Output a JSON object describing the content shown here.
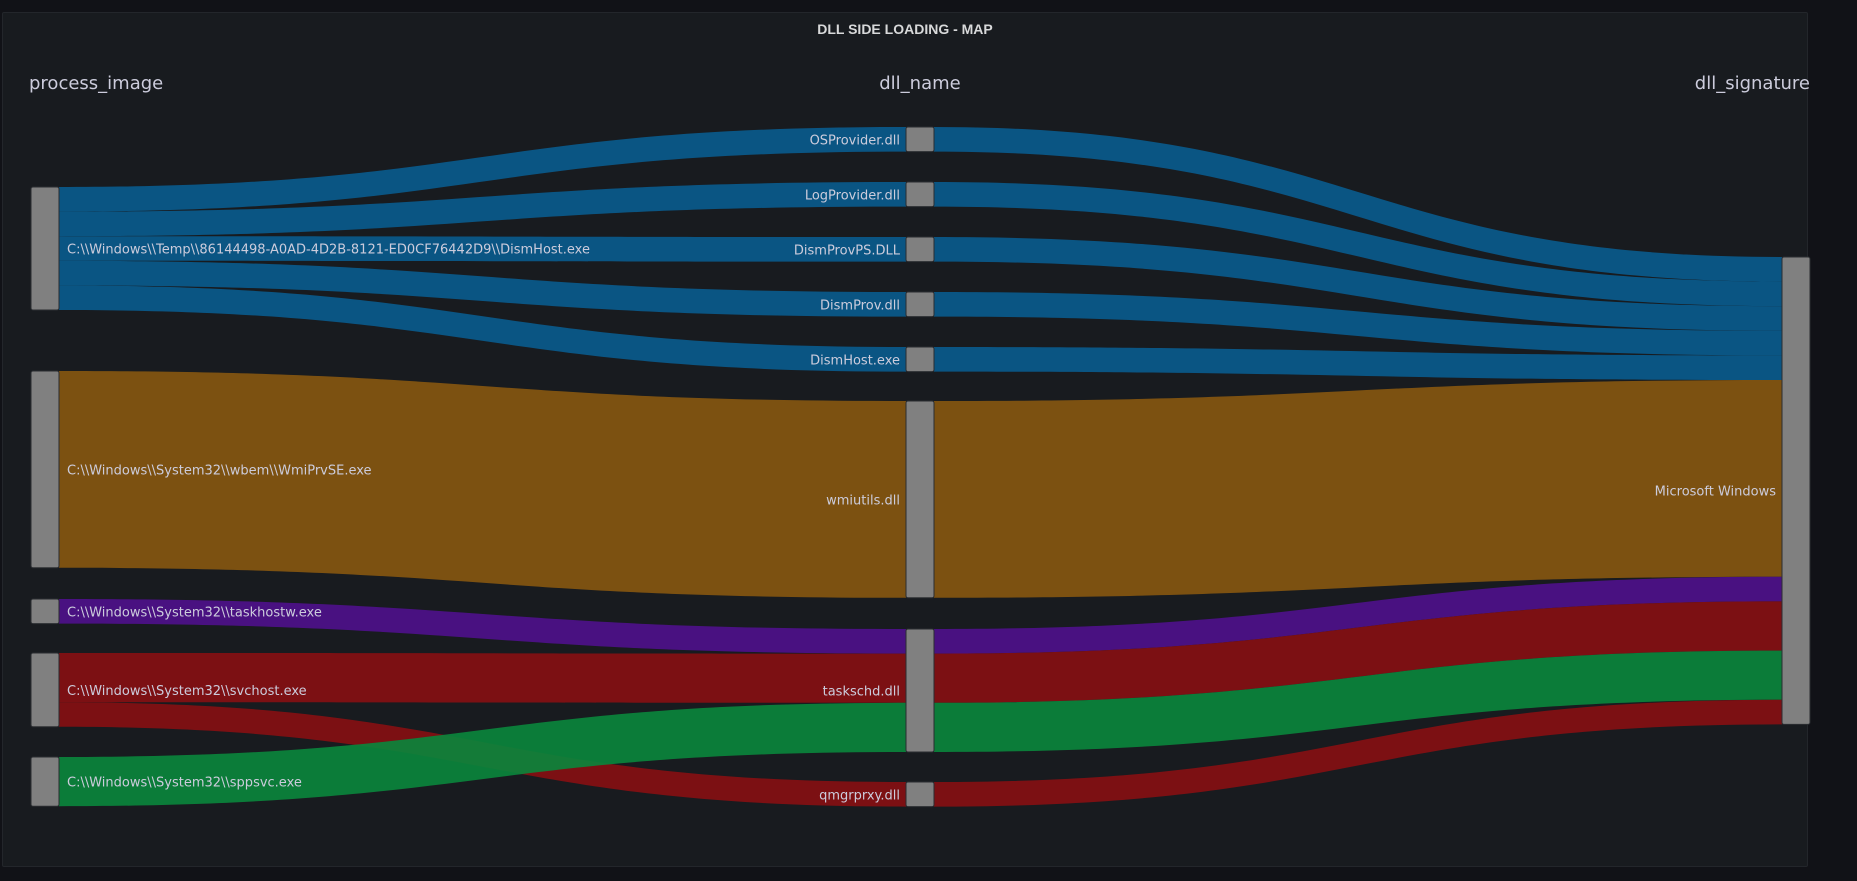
{
  "panel": {
    "title": "DLL SIDE LOADING - MAP"
  },
  "chart_data": {
    "type": "sankey",
    "columns": [
      "process_image",
      "dll_name",
      "dll_signature"
    ],
    "nodes": {
      "process_image": [
        "C:\\\\Windows\\\\Temp\\\\86144498-A0AD-4D2B-8121-ED0CF76442D9\\\\DismHost.exe",
        "C:\\\\Windows\\\\System32\\\\wbem\\\\WmiPrvSE.exe",
        "C:\\\\Windows\\\\System32\\\\taskhostw.exe",
        "C:\\\\Windows\\\\System32\\\\svchost.exe",
        "C:\\\\Windows\\\\System32\\\\sppsvc.exe"
      ],
      "dll_name": [
        "OSProvider.dll",
        "LogProvider.dll",
        "DismProvPS.DLL",
        "DismProv.dll",
        "DismHost.exe",
        "wmiutils.dll",
        "taskschd.dll",
        "qmgrprxy.dll"
      ],
      "dll_signature": [
        "Microsoft Windows"
      ]
    },
    "links": [
      {
        "source": 0,
        "target": 0,
        "value": 1
      },
      {
        "source": 0,
        "target": 1,
        "value": 1
      },
      {
        "source": 0,
        "target": 2,
        "value": 1
      },
      {
        "source": 0,
        "target": 3,
        "value": 1
      },
      {
        "source": 0,
        "target": 4,
        "value": 1
      },
      {
        "source": 1,
        "target": 5,
        "value": 8
      },
      {
        "source": 2,
        "target": 6,
        "value": 1
      },
      {
        "source": 3,
        "target": 6,
        "value": 2
      },
      {
        "source": 3,
        "target": 7,
        "value": 1
      },
      {
        "source": 4,
        "target": 6,
        "value": 2
      }
    ],
    "colors": [
      "#0a5a8c",
      "#855610",
      "#4e108a",
      "#850f12",
      "#0b843c"
    ]
  }
}
